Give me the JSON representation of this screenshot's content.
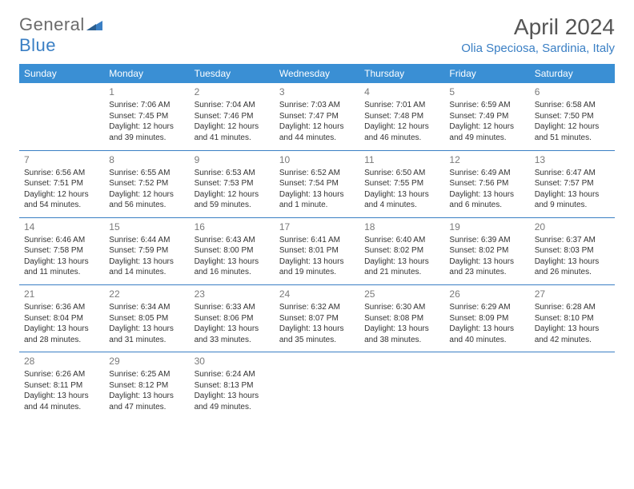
{
  "logo": {
    "left": "General",
    "right": "Blue"
  },
  "title": "April 2024",
  "location": "Olia Speciosa, Sardinia, Italy",
  "colors": {
    "header_bg": "#3a8fd4",
    "header_text": "#ffffff",
    "accent": "#3a7fc4",
    "body_text": "#333333",
    "muted": "#7a7a7a",
    "background": "#ffffff"
  },
  "weekdays": [
    "Sunday",
    "Monday",
    "Tuesday",
    "Wednesday",
    "Thursday",
    "Friday",
    "Saturday"
  ],
  "weeks": [
    [
      null,
      {
        "n": "1",
        "l1": "Sunrise: 7:06 AM",
        "l2": "Sunset: 7:45 PM",
        "l3": "Daylight: 12 hours",
        "l4": "and 39 minutes."
      },
      {
        "n": "2",
        "l1": "Sunrise: 7:04 AM",
        "l2": "Sunset: 7:46 PM",
        "l3": "Daylight: 12 hours",
        "l4": "and 41 minutes."
      },
      {
        "n": "3",
        "l1": "Sunrise: 7:03 AM",
        "l2": "Sunset: 7:47 PM",
        "l3": "Daylight: 12 hours",
        "l4": "and 44 minutes."
      },
      {
        "n": "4",
        "l1": "Sunrise: 7:01 AM",
        "l2": "Sunset: 7:48 PM",
        "l3": "Daylight: 12 hours",
        "l4": "and 46 minutes."
      },
      {
        "n": "5",
        "l1": "Sunrise: 6:59 AM",
        "l2": "Sunset: 7:49 PM",
        "l3": "Daylight: 12 hours",
        "l4": "and 49 minutes."
      },
      {
        "n": "6",
        "l1": "Sunrise: 6:58 AM",
        "l2": "Sunset: 7:50 PM",
        "l3": "Daylight: 12 hours",
        "l4": "and 51 minutes."
      }
    ],
    [
      {
        "n": "7",
        "l1": "Sunrise: 6:56 AM",
        "l2": "Sunset: 7:51 PM",
        "l3": "Daylight: 12 hours",
        "l4": "and 54 minutes."
      },
      {
        "n": "8",
        "l1": "Sunrise: 6:55 AM",
        "l2": "Sunset: 7:52 PM",
        "l3": "Daylight: 12 hours",
        "l4": "and 56 minutes."
      },
      {
        "n": "9",
        "l1": "Sunrise: 6:53 AM",
        "l2": "Sunset: 7:53 PM",
        "l3": "Daylight: 12 hours",
        "l4": "and 59 minutes."
      },
      {
        "n": "10",
        "l1": "Sunrise: 6:52 AM",
        "l2": "Sunset: 7:54 PM",
        "l3": "Daylight: 13 hours",
        "l4": "and 1 minute."
      },
      {
        "n": "11",
        "l1": "Sunrise: 6:50 AM",
        "l2": "Sunset: 7:55 PM",
        "l3": "Daylight: 13 hours",
        "l4": "and 4 minutes."
      },
      {
        "n": "12",
        "l1": "Sunrise: 6:49 AM",
        "l2": "Sunset: 7:56 PM",
        "l3": "Daylight: 13 hours",
        "l4": "and 6 minutes."
      },
      {
        "n": "13",
        "l1": "Sunrise: 6:47 AM",
        "l2": "Sunset: 7:57 PM",
        "l3": "Daylight: 13 hours",
        "l4": "and 9 minutes."
      }
    ],
    [
      {
        "n": "14",
        "l1": "Sunrise: 6:46 AM",
        "l2": "Sunset: 7:58 PM",
        "l3": "Daylight: 13 hours",
        "l4": "and 11 minutes."
      },
      {
        "n": "15",
        "l1": "Sunrise: 6:44 AM",
        "l2": "Sunset: 7:59 PM",
        "l3": "Daylight: 13 hours",
        "l4": "and 14 minutes."
      },
      {
        "n": "16",
        "l1": "Sunrise: 6:43 AM",
        "l2": "Sunset: 8:00 PM",
        "l3": "Daylight: 13 hours",
        "l4": "and 16 minutes."
      },
      {
        "n": "17",
        "l1": "Sunrise: 6:41 AM",
        "l2": "Sunset: 8:01 PM",
        "l3": "Daylight: 13 hours",
        "l4": "and 19 minutes."
      },
      {
        "n": "18",
        "l1": "Sunrise: 6:40 AM",
        "l2": "Sunset: 8:02 PM",
        "l3": "Daylight: 13 hours",
        "l4": "and 21 minutes."
      },
      {
        "n": "19",
        "l1": "Sunrise: 6:39 AM",
        "l2": "Sunset: 8:02 PM",
        "l3": "Daylight: 13 hours",
        "l4": "and 23 minutes."
      },
      {
        "n": "20",
        "l1": "Sunrise: 6:37 AM",
        "l2": "Sunset: 8:03 PM",
        "l3": "Daylight: 13 hours",
        "l4": "and 26 minutes."
      }
    ],
    [
      {
        "n": "21",
        "l1": "Sunrise: 6:36 AM",
        "l2": "Sunset: 8:04 PM",
        "l3": "Daylight: 13 hours",
        "l4": "and 28 minutes."
      },
      {
        "n": "22",
        "l1": "Sunrise: 6:34 AM",
        "l2": "Sunset: 8:05 PM",
        "l3": "Daylight: 13 hours",
        "l4": "and 31 minutes."
      },
      {
        "n": "23",
        "l1": "Sunrise: 6:33 AM",
        "l2": "Sunset: 8:06 PM",
        "l3": "Daylight: 13 hours",
        "l4": "and 33 minutes."
      },
      {
        "n": "24",
        "l1": "Sunrise: 6:32 AM",
        "l2": "Sunset: 8:07 PM",
        "l3": "Daylight: 13 hours",
        "l4": "and 35 minutes."
      },
      {
        "n": "25",
        "l1": "Sunrise: 6:30 AM",
        "l2": "Sunset: 8:08 PM",
        "l3": "Daylight: 13 hours",
        "l4": "and 38 minutes."
      },
      {
        "n": "26",
        "l1": "Sunrise: 6:29 AM",
        "l2": "Sunset: 8:09 PM",
        "l3": "Daylight: 13 hours",
        "l4": "and 40 minutes."
      },
      {
        "n": "27",
        "l1": "Sunrise: 6:28 AM",
        "l2": "Sunset: 8:10 PM",
        "l3": "Daylight: 13 hours",
        "l4": "and 42 minutes."
      }
    ],
    [
      {
        "n": "28",
        "l1": "Sunrise: 6:26 AM",
        "l2": "Sunset: 8:11 PM",
        "l3": "Daylight: 13 hours",
        "l4": "and 44 minutes."
      },
      {
        "n": "29",
        "l1": "Sunrise: 6:25 AM",
        "l2": "Sunset: 8:12 PM",
        "l3": "Daylight: 13 hours",
        "l4": "and 47 minutes."
      },
      {
        "n": "30",
        "l1": "Sunrise: 6:24 AM",
        "l2": "Sunset: 8:13 PM",
        "l3": "Daylight: 13 hours",
        "l4": "and 49 minutes."
      },
      null,
      null,
      null,
      null
    ]
  ]
}
